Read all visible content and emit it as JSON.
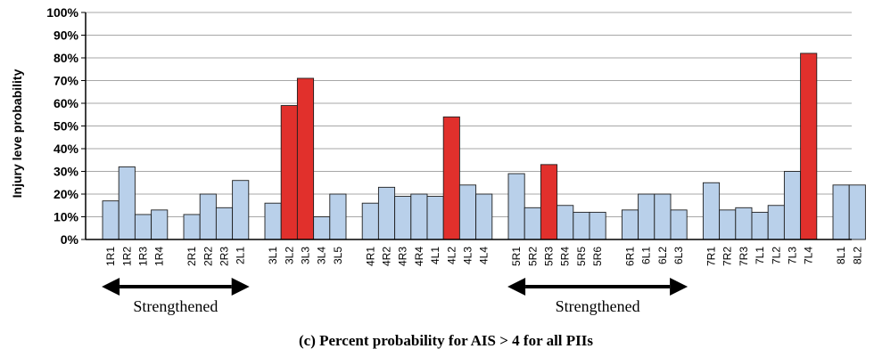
{
  "chart_data": {
    "type": "bar",
    "title": "",
    "xlabel": "",
    "ylabel": "Injury leve probability",
    "ylim": [
      0,
      100
    ],
    "yticks": [
      "0%",
      "10%",
      "20%",
      "30%",
      "40%",
      "50%",
      "60%",
      "70%",
      "80%",
      "90%",
      "100%"
    ],
    "grid": "horizontal",
    "caption": "(c) Percent probability for AIS > 4 for all PIIs",
    "colors": {
      "normal": "#b9d0ea",
      "highlight": "#e1302c",
      "edge": "#1f1f1f"
    },
    "groups": [
      {
        "name": "1",
        "bars": [
          {
            "label": "1R1",
            "value": 17,
            "highlight": false
          },
          {
            "label": "1R2",
            "value": 32,
            "highlight": false
          },
          {
            "label": "1R3",
            "value": 11,
            "highlight": false
          },
          {
            "label": "1R4",
            "value": 13,
            "highlight": false
          }
        ]
      },
      {
        "name": "2",
        "bars": [
          {
            "label": "2R1",
            "value": 11,
            "highlight": false
          },
          {
            "label": "2R2",
            "value": 20,
            "highlight": false
          },
          {
            "label": "2R3",
            "value": 14,
            "highlight": false
          },
          {
            "label": "2L1",
            "value": 26,
            "highlight": false
          }
        ]
      },
      {
        "name": "3",
        "bars": [
          {
            "label": "3L1",
            "value": 16,
            "highlight": false
          },
          {
            "label": "3L2",
            "value": 59,
            "highlight": true
          },
          {
            "label": "3L3",
            "value": 71,
            "highlight": true
          },
          {
            "label": "3L4",
            "value": 10,
            "highlight": false
          },
          {
            "label": "3L5",
            "value": 20,
            "highlight": false
          }
        ]
      },
      {
        "name": "4",
        "bars": [
          {
            "label": "4R1",
            "value": 16,
            "highlight": false
          },
          {
            "label": "4R2",
            "value": 23,
            "highlight": false
          },
          {
            "label": "4R3",
            "value": 19,
            "highlight": false
          },
          {
            "label": "4R4",
            "value": 20,
            "highlight": false
          },
          {
            "label": "4L1",
            "value": 19,
            "highlight": false
          },
          {
            "label": "4L2",
            "value": 54,
            "highlight": true
          },
          {
            "label": "4L3",
            "value": 24,
            "highlight": false
          },
          {
            "label": "4L4",
            "value": 20,
            "highlight": false
          }
        ]
      },
      {
        "name": "5",
        "bars": [
          {
            "label": "5R1",
            "value": 29,
            "highlight": false
          },
          {
            "label": "5R2",
            "value": 14,
            "highlight": false
          },
          {
            "label": "5R3",
            "value": 33,
            "highlight": true
          },
          {
            "label": "5R4",
            "value": 15,
            "highlight": false
          },
          {
            "label": "5R5",
            "value": 12,
            "highlight": false
          },
          {
            "label": "5R6",
            "value": 12,
            "highlight": false
          }
        ]
      },
      {
        "name": "6",
        "bars": [
          {
            "label": "6R1",
            "value": 13,
            "highlight": false
          },
          {
            "label": "6L1",
            "value": 20,
            "highlight": false
          },
          {
            "label": "6L2",
            "value": 20,
            "highlight": false
          },
          {
            "label": "6L3",
            "value": 13,
            "highlight": false
          }
        ]
      },
      {
        "name": "7",
        "bars": [
          {
            "label": "7R1",
            "value": 25,
            "highlight": false
          },
          {
            "label": "7R2",
            "value": 13,
            "highlight": false
          },
          {
            "label": "7R3",
            "value": 14,
            "highlight": false
          },
          {
            "label": "7L1",
            "value": 12,
            "highlight": false
          },
          {
            "label": "7L2",
            "value": 15,
            "highlight": false
          },
          {
            "label": "7L3",
            "value": 30,
            "highlight": false
          },
          {
            "label": "7L4",
            "value": 82,
            "highlight": true
          }
        ]
      },
      {
        "name": "8",
        "bars": [
          {
            "label": "8L1",
            "value": 24,
            "highlight": false
          },
          {
            "label": "8L2",
            "value": 24,
            "highlight": false
          }
        ]
      }
    ],
    "annotations": [
      {
        "text": "Strengthened",
        "from": "1R1",
        "to": "2L1"
      },
      {
        "text": "Strengthened",
        "from": "5R1",
        "to": "6L3"
      }
    ]
  }
}
